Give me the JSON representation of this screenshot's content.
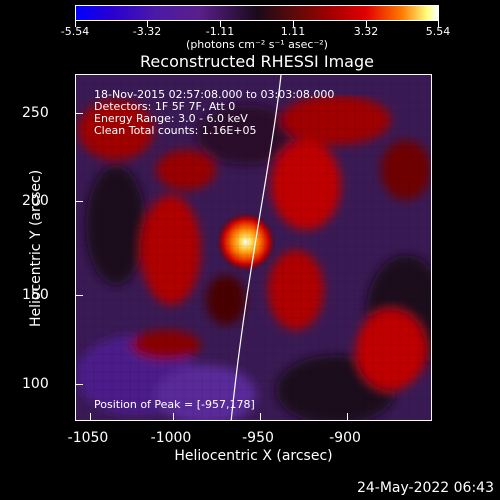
{
  "colorbar": {
    "tick_labels": [
      "-5.54",
      "-3.32",
      "-1.11",
      "1.11",
      "3.32",
      "5.54"
    ],
    "unit_label": "(photons cm⁻² s⁻¹ asec⁻²)"
  },
  "title": "Reconstructed RHESSI Image",
  "info": {
    "line1": "18-Nov-2015 02:57:08.000 to 03:03:08.000",
    "line2": "Detectors: 1F 5F 7F, Att 0",
    "line3": "Energy Range: 3.0 - 6.0 keV",
    "line4": "Clean     Total counts: 1.16E+05"
  },
  "peak_text": "Position of Peak = [-957,178]",
  "axes": {
    "x_title": "Heliocentric X (arcsec)",
    "y_title": "Heliocentric Y (arcsec)",
    "x_ticks": [
      "-1050",
      "-1000",
      "-950",
      "-900"
    ],
    "y_ticks": [
      "250",
      "200",
      "150",
      "100"
    ]
  },
  "footer_date": "24-May-2022 06:43",
  "colors": {
    "foreground": "#ffffff",
    "background": "#000000"
  }
}
